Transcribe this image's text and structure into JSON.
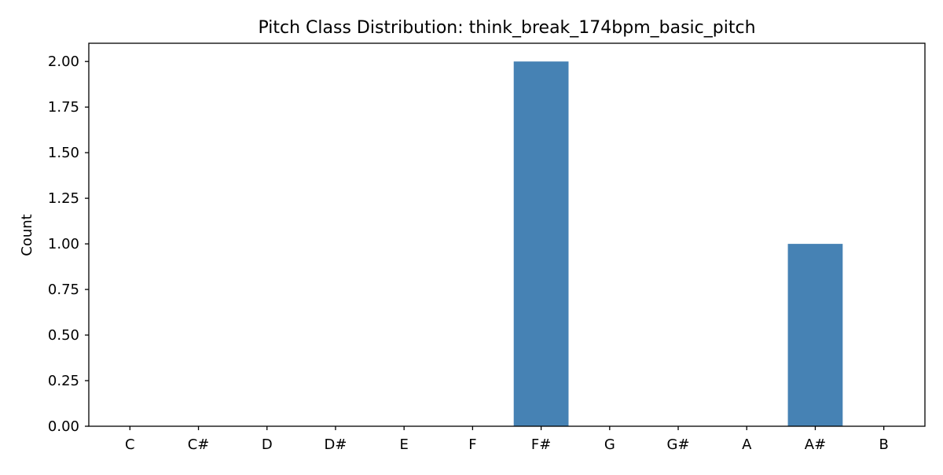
{
  "chart_data": {
    "type": "bar",
    "title": "Pitch Class Distribution: think_break_174bpm_basic_pitch",
    "xlabel": "",
    "ylabel": "Count",
    "categories": [
      "C",
      "C#",
      "D",
      "D#",
      "E",
      "F",
      "F#",
      "G",
      "G#",
      "A",
      "A#",
      "B"
    ],
    "values": [
      0,
      0,
      0,
      0,
      0,
      0,
      2,
      0,
      0,
      0,
      1,
      0
    ],
    "ylim": [
      0,
      2.1
    ],
    "yticks": [
      "0.00",
      "0.25",
      "0.50",
      "0.75",
      "1.00",
      "1.25",
      "1.50",
      "1.75",
      "2.00"
    ],
    "grid": false,
    "bar_color": "#4682b4"
  }
}
